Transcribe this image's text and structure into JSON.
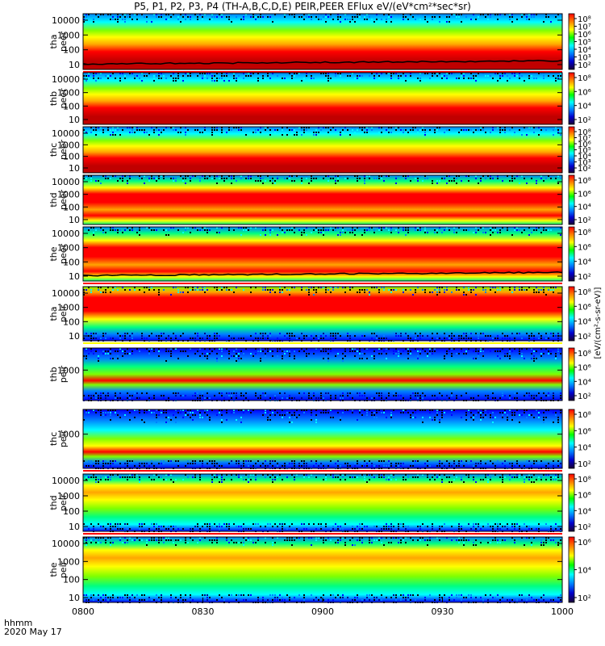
{
  "title": "P5, P1, P2, P3, P4 (TH-A,B,C,D,E) PEIR,PEER EFlux eV/(eV*cm²*sec*sr)",
  "colorbar_unit_label": "[eV/(cm²-s-sr-eV)]",
  "footer": {
    "time_format": "hhmm",
    "date": "2020 May 17"
  },
  "colors": {
    "scale": [
      "#00008b",
      "#0000ff",
      "#0080ff",
      "#00ffff",
      "#00ff80",
      "#80ff00",
      "#ffff00",
      "#ffa500",
      "#ff0000",
      "#c00000"
    ],
    "separator_red": "#ff0000",
    "separator_yellow": "#ffff00"
  },
  "chart_data": [
    {
      "type": "heatmap",
      "ylabel": [
        "tha",
        "peer"
      ],
      "yticks": [
        "10000",
        "1000",
        "100",
        "10"
      ],
      "cbticks": [
        "10⁸",
        "10⁷",
        "10⁶",
        "10⁵",
        "10⁴",
        "10³",
        "10²"
      ],
      "colorscale": "log",
      "profile": "peer_low",
      "floor_line": true,
      "sep": "red"
    },
    {
      "type": "heatmap",
      "ylabel": [
        "thb",
        "peer"
      ],
      "yticks": [
        "10000",
        "1000",
        "100",
        "10"
      ],
      "cbticks": [
        "10⁸",
        "10⁶",
        "10⁴",
        "10²"
      ],
      "colorscale": "log",
      "profile": "peer_low",
      "floor_line": false,
      "sep": ""
    },
    {
      "type": "heatmap",
      "ylabel": [
        "thc",
        "peer"
      ],
      "yticks": [
        "10000",
        "1000",
        "100",
        "10"
      ],
      "cbticks": [
        "10⁸",
        "10⁷",
        "10⁶",
        "10⁵",
        "10⁴",
        "10³",
        "10²"
      ],
      "colorscale": "log",
      "profile": "peer_low",
      "floor_line": false,
      "sep": ""
    },
    {
      "type": "heatmap",
      "ylabel": [
        "thd",
        "peer"
      ],
      "yticks": [
        "10000",
        "1000",
        "100",
        "10"
      ],
      "cbticks": [
        "10⁸",
        "10⁶",
        "10⁴",
        "10²"
      ],
      "colorscale": "log",
      "profile": "peer_wide",
      "floor_line": false,
      "sep": ""
    },
    {
      "type": "heatmap",
      "ylabel": [
        "the",
        "peer"
      ],
      "yticks": [
        "10000",
        "1000",
        "100",
        "10"
      ],
      "cbticks": [
        "10⁸",
        "10⁶",
        "10⁴",
        "10²"
      ],
      "colorscale": "log",
      "profile": "peer_wide",
      "floor_line": true,
      "sep": "red"
    },
    {
      "type": "heatmap",
      "ylabel": [
        "tha",
        "peir"
      ],
      "yticks": [
        "10000",
        "1000",
        "100",
        "10"
      ],
      "cbticks": [
        "10⁸",
        "10⁶",
        "10⁴",
        "10²"
      ],
      "colorscale": "log",
      "profile": "peir_hot",
      "floor_line": false,
      "sep": "yellow"
    },
    {
      "type": "heatmap",
      "ylabel": [
        "thb",
        "peir"
      ],
      "yticks": [
        "1000"
      ],
      "cbticks": [
        "10⁸",
        "10⁶",
        "10⁴",
        "10²"
      ],
      "colorscale": "log",
      "profile": "peir_band",
      "floor_line": false,
      "sep": ""
    },
    {
      "type": "heatmap",
      "ylabel": [
        "thc",
        "peir"
      ],
      "yticks": [
        "1000"
      ],
      "cbticks": [
        "10⁸",
        "10⁶",
        "10⁴",
        "10²"
      ],
      "colorscale": "log",
      "profile": "peir_band2",
      "floor_line": false,
      "sep": "red"
    },
    {
      "type": "heatmap",
      "ylabel": [
        "thd",
        "peir"
      ],
      "yticks": [
        "10000",
        "1000",
        "100",
        "10"
      ],
      "cbticks": [
        "10⁸",
        "10⁶",
        "10⁴",
        "10²"
      ],
      "colorscale": "log",
      "profile": "peir_mid",
      "floor_line": false,
      "sep": "red"
    },
    {
      "type": "heatmap",
      "ylabel": [
        "the",
        "peir"
      ],
      "yticks": [
        "10000",
        "1000",
        "100",
        "10"
      ],
      "cbticks": [
        "10⁶",
        "10⁴",
        "10²"
      ],
      "colorscale": "log",
      "profile": "peir_mid",
      "floor_line": false,
      "sep": ""
    }
  ],
  "xaxis": {
    "ticks": [
      "0800",
      "0830",
      "0900",
      "0930",
      "1000"
    ],
    "range": [
      "0800",
      "1000"
    ]
  }
}
